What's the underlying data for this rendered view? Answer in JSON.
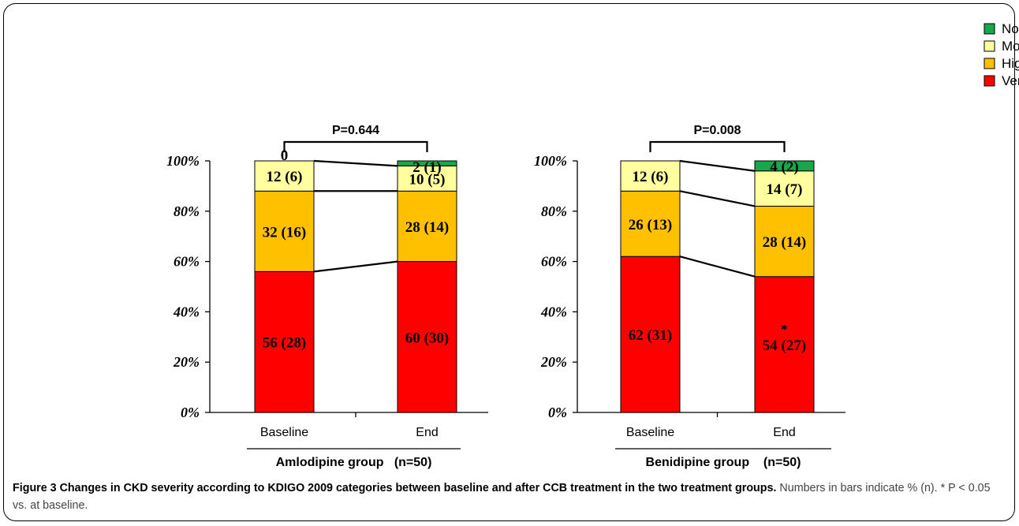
{
  "legend": [
    {
      "label": "No CKD",
      "color": "#1aa64a"
    },
    {
      "label": "Moderate risk",
      "color": "#ffff9f"
    },
    {
      "label": "High risk",
      "color": "#ffc000"
    },
    {
      "label": "Very-high risk",
      "color": "#ff0000"
    }
  ],
  "caption": {
    "title": "Figure 3 Changes in CKD severity according to KDIGO 2009 categories between baseline and after CCB treatment in the two treatment groups.",
    "text": " Numbers in bars indicate % (n). * P < 0.05 vs. at baseline."
  },
  "chart_data": [
    {
      "type": "bar",
      "stacked": true,
      "group_label": "Amlodipine group   (n=50)",
      "p_value": "P=0.644",
      "categories": [
        "Baseline",
        "End"
      ],
      "yticks": [
        "0%",
        "20%",
        "40%",
        "60%",
        "80%",
        "100%"
      ],
      "ylim": [
        0,
        100
      ],
      "series": [
        {
          "name": "Very-high risk",
          "values": [
            56,
            60
          ],
          "labels": [
            "56 (28)",
            "60 (30)"
          ]
        },
        {
          "name": "High risk",
          "values": [
            32,
            28
          ],
          "labels": [
            "32 (16)",
            "28 (14)"
          ]
        },
        {
          "name": "Moderate risk",
          "values": [
            12,
            10
          ],
          "labels": [
            "12 (6)",
            "10 (5)"
          ]
        },
        {
          "name": "No CKD",
          "values": [
            0,
            2
          ],
          "labels": [
            "0",
            "2 (1)"
          ]
        }
      ],
      "significance": [
        false,
        false
      ]
    },
    {
      "type": "bar",
      "stacked": true,
      "group_label": "Benidipine group    (n=50)",
      "p_value": "P=0.008",
      "categories": [
        "Baseline",
        "End"
      ],
      "yticks": [
        "0%",
        "20%",
        "40%",
        "60%",
        "80%",
        "100%"
      ],
      "ylim": [
        0,
        100
      ],
      "series": [
        {
          "name": "Very-high risk",
          "values": [
            62,
            54
          ],
          "labels": [
            "62 (31)",
            "54 (27)"
          ]
        },
        {
          "name": "High risk",
          "values": [
            26,
            28
          ],
          "labels": [
            "26 (13)",
            "28 (14)"
          ]
        },
        {
          "name": "Moderate risk",
          "values": [
            12,
            14
          ],
          "labels": [
            "12 (6)",
            "14 (7)"
          ]
        },
        {
          "name": "No CKD",
          "values": [
            0,
            4
          ],
          "labels": [
            "",
            "4 (2)"
          ]
        }
      ],
      "significance": [
        false,
        true
      ],
      "significance_mark": "*"
    }
  ]
}
